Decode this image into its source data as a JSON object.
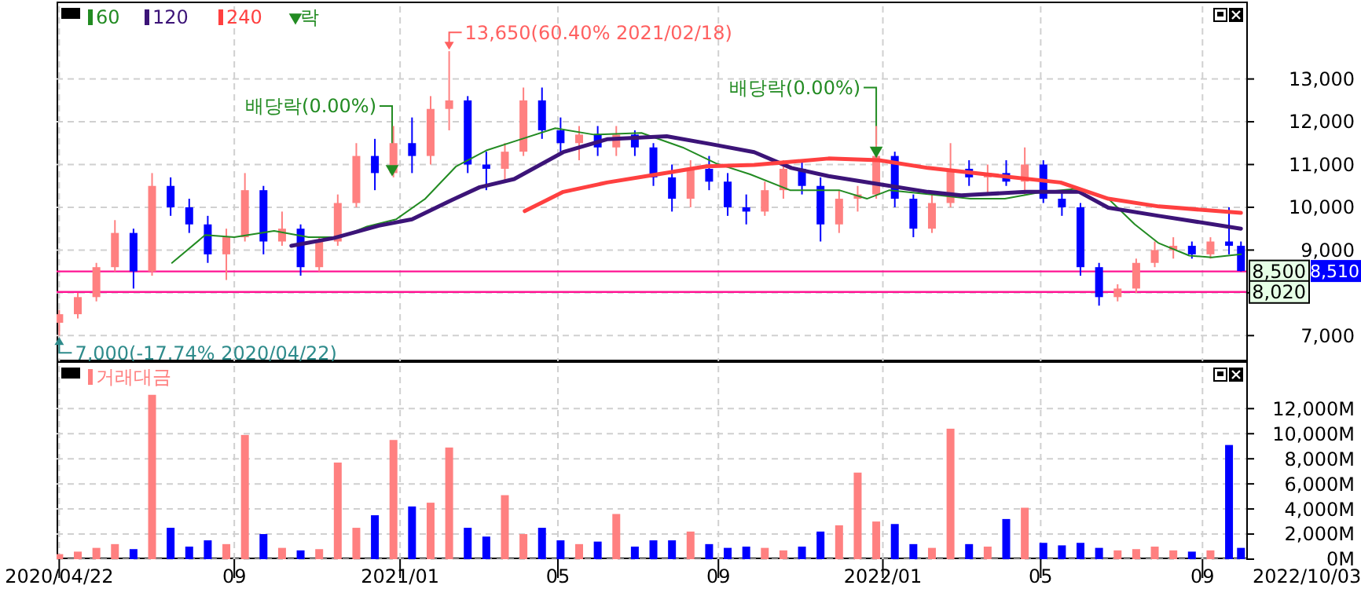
{
  "chart_data": [
    {
      "type": "candlestick",
      "x": [
        "2020-04-22",
        "2020-05-06",
        "2020-05-20",
        "2020-06-03",
        "2020-06-17",
        "2020-07-01",
        "2020-07-15",
        "2020-07-29",
        "2020-08-12",
        "2020-08-26",
        "2020-09-09",
        "2020-09-23",
        "2020-10-07",
        "2020-10-21",
        "2020-11-04",
        "2020-11-18",
        "2020-12-02",
        "2020-12-16",
        "2020-12-30",
        "2021-01-13",
        "2021-01-27",
        "2021-02-10",
        "2021-02-24",
        "2021-03-10",
        "2021-03-24",
        "2021-04-07",
        "2021-04-21",
        "2021-05-05",
        "2021-05-19",
        "2021-06-02",
        "2021-06-16",
        "2021-06-30",
        "2021-07-14",
        "2021-07-28",
        "2021-08-11",
        "2021-08-25",
        "2021-09-08",
        "2021-09-22",
        "2021-10-06",
        "2021-10-20",
        "2021-11-03",
        "2021-11-17",
        "2021-12-01",
        "2021-12-15",
        "2021-12-29",
        "2022-01-12",
        "2022-01-26",
        "2022-02-09",
        "2022-02-23",
        "2022-03-09",
        "2022-03-23",
        "2022-04-06",
        "2022-04-20",
        "2022-05-04",
        "2022-05-18",
        "2022-06-01",
        "2022-06-15",
        "2022-06-29",
        "2022-07-13",
        "2022-07-27",
        "2022-08-10",
        "2022-08-24",
        "2022-09-07",
        "2022-09-21",
        "2022-09-30"
      ],
      "ohlc": [
        [
          7300,
          7600,
          7000,
          7500
        ],
        [
          7500,
          8000,
          7400,
          7900
        ],
        [
          7900,
          8700,
          7800,
          8600
        ],
        [
          8600,
          9700,
          8500,
          9400
        ],
        [
          9400,
          9500,
          8100,
          8500
        ],
        [
          8500,
          10800,
          8400,
          10500
        ],
        [
          10500,
          10700,
          9800,
          10000
        ],
        [
          10000,
          10200,
          9400,
          9600
        ],
        [
          9600,
          9800,
          8700,
          8900
        ],
        [
          8900,
          9500,
          8300,
          9300
        ],
        [
          9300,
          10800,
          9200,
          10400
        ],
        [
          10400,
          10500,
          8900,
          9200
        ],
        [
          9200,
          9900,
          9100,
          9500
        ],
        [
          9500,
          9600,
          8400,
          8600
        ],
        [
          8600,
          9300,
          8500,
          9200
        ],
        [
          9200,
          10300,
          9100,
          10100
        ],
        [
          10100,
          11500,
          10000,
          11200
        ],
        [
          11200,
          11600,
          10400,
          10800
        ],
        [
          10800,
          11900,
          10700,
          11500
        ],
        [
          11500,
          12100,
          10800,
          11200
        ],
        [
          11200,
          12600,
          11000,
          12300
        ],
        [
          12300,
          13650,
          11800,
          12500
        ],
        [
          12500,
          12600,
          10800,
          11000
        ],
        [
          11000,
          11300,
          10400,
          10900
        ],
        [
          10900,
          11500,
          10600,
          11300
        ],
        [
          11300,
          12800,
          11200,
          12500
        ],
        [
          12500,
          12800,
          11600,
          11800
        ],
        [
          11800,
          12100,
          11300,
          11500
        ],
        [
          11500,
          11900,
          11100,
          11700
        ],
        [
          11700,
          11900,
          11200,
          11400
        ],
        [
          11400,
          11900,
          11200,
          11700
        ],
        [
          11700,
          11800,
          11200,
          11400
        ],
        [
          11400,
          11500,
          10500,
          10700
        ],
        [
          10700,
          11000,
          9900,
          10200
        ],
        [
          10200,
          11100,
          10000,
          10900
        ],
        [
          10900,
          11200,
          10400,
          10600
        ],
        [
          10600,
          10800,
          9800,
          10000
        ],
        [
          10000,
          10300,
          9600,
          9900
        ],
        [
          9900,
          10600,
          9800,
          10400
        ],
        [
          10400,
          11100,
          10200,
          10900
        ],
        [
          10900,
          11100,
          10300,
          10500
        ],
        [
          10500,
          10700,
          9200,
          9600
        ],
        [
          9600,
          10400,
          9400,
          10200
        ],
        [
          10200,
          10500,
          9900,
          10300
        ],
        [
          10300,
          11900,
          10200,
          11200
        ],
        [
          11200,
          11300,
          10000,
          10200
        ],
        [
          10200,
          10300,
          9300,
          9500
        ],
        [
          9500,
          10300,
          9400,
          10100
        ],
        [
          10100,
          11500,
          10000,
          10900
        ],
        [
          10900,
          11100,
          10500,
          10700
        ],
        [
          10700,
          11000,
          10300,
          10800
        ],
        [
          10800,
          11100,
          10500,
          10600
        ],
        [
          10600,
          11400,
          10300,
          11000
        ],
        [
          11000,
          11100,
          10100,
          10200
        ],
        [
          10200,
          10400,
          9800,
          10000
        ],
        [
          10000,
          10100,
          8400,
          8600
        ],
        [
          8600,
          8700,
          7700,
          7900
        ],
        [
          7900,
          8200,
          7800,
          8100
        ],
        [
          8100,
          8800,
          8000,
          8700
        ],
        [
          8700,
          9200,
          8600,
          9000
        ],
        [
          9000,
          9300,
          8800,
          9100
        ],
        [
          9100,
          9200,
          8800,
          8900
        ],
        [
          8900,
          9300,
          8800,
          9200
        ],
        [
          9200,
          10000,
          8900,
          9100
        ],
        [
          9100,
          9200,
          8500,
          8510
        ]
      ],
      "colors": [
        "#ff8080",
        "#ff8080",
        "#ff8080",
        "#ff8080",
        "#0000ff",
        "#ff8080",
        "#0000ff",
        "#0000ff",
        "#0000ff",
        "#ff8080",
        "#ff8080",
        "#0000ff",
        "#ff8080",
        "#0000ff",
        "#ff8080",
        "#ff8080",
        "#ff8080",
        "#0000ff",
        "#ff8080",
        "#0000ff",
        "#ff8080",
        "#ff8080",
        "#0000ff",
        "#0000ff",
        "#ff8080",
        "#ff8080",
        "#0000ff",
        "#0000ff",
        "#ff8080",
        "#0000ff",
        "#ff8080",
        "#0000ff",
        "#0000ff",
        "#0000ff",
        "#ff8080",
        "#0000ff",
        "#0000ff",
        "#0000ff",
        "#ff8080",
        "#ff8080",
        "#0000ff",
        "#0000ff",
        "#ff8080",
        "#ff8080",
        "#ff8080",
        "#0000ff",
        "#0000ff",
        "#ff8080",
        "#ff8080",
        "#0000ff",
        "#ff8080",
        "#0000ff",
        "#ff8080",
        "#0000ff",
        "#0000ff",
        "#0000ff",
        "#0000ff",
        "#ff8080",
        "#ff8080",
        "#ff8080",
        "#ff8080",
        "#0000ff",
        "#ff8080",
        "#0000ff",
        "#0000ff"
      ],
      "series": [
        {
          "name": "60",
          "type": "line",
          "color": "#228b22",
          "x": [
            "2020-07-16",
            "2020-08-10",
            "2020-09-01",
            "2020-10-01",
            "2020-10-27",
            "2020-11-20",
            "2020-12-10",
            "2021-01-01",
            "2021-01-23",
            "2021-02-15",
            "2021-03-10",
            "2021-04-05",
            "2021-05-01",
            "2021-05-30",
            "2021-07-05",
            "2021-08-05",
            "2021-08-30",
            "2021-09-25",
            "2021-10-25",
            "2021-12-01",
            "2021-12-22",
            "2022-01-08",
            "2022-02-15",
            "2022-03-10",
            "2022-04-05",
            "2022-05-01",
            "2022-05-28",
            "2022-06-22",
            "2022-07-12",
            "2022-07-30",
            "2022-08-22",
            "2022-09-08",
            "2022-09-30"
          ],
          "values": [
            8700,
            9350,
            9300,
            9450,
            9300,
            9300,
            9550,
            9720,
            10200,
            10950,
            11330,
            11590,
            11850,
            11700,
            11740,
            11400,
            11030,
            10770,
            10400,
            10400,
            10200,
            10400,
            10280,
            10200,
            10200,
            10350,
            10430,
            10200,
            9600,
            9160,
            8870,
            8830,
            8900
          ]
        },
        {
          "name": "120",
          "type": "line",
          "color": "#3c1478",
          "x": [
            "2020-10-14",
            "2020-11-15",
            "2020-12-19",
            "2021-01-13",
            "2021-02-12",
            "2021-03-05",
            "2021-03-31",
            "2021-05-07",
            "2021-06-09",
            "2021-07-24",
            "2021-08-26",
            "2021-09-28",
            "2021-10-26",
            "2021-11-23",
            "2021-12-31",
            "2022-02-06",
            "2022-03-03",
            "2022-04-21",
            "2022-05-31",
            "2022-06-22",
            "2022-07-30",
            "2022-09-30"
          ],
          "values": [
            9100,
            9280,
            9570,
            9720,
            10170,
            10470,
            10660,
            11290,
            11590,
            11660,
            11480,
            11290,
            10920,
            10730,
            10540,
            10360,
            10280,
            10360,
            10360,
            9990,
            9800,
            9500
          ]
        },
        {
          "name": "240",
          "type": "line",
          "color": "#ff4040",
          "x": [
            "2021-04-08",
            "2021-05-07",
            "2021-06-09",
            "2021-07-17",
            "2021-08-23",
            "2021-09-28",
            "2021-11-23",
            "2021-12-31",
            "2022-02-06",
            "2022-03-22",
            "2022-05-17",
            "2022-06-22",
            "2022-07-30",
            "2022-09-30"
          ],
          "values": [
            9910,
            10360,
            10580,
            10770,
            10960,
            10990,
            11140,
            11100,
            10920,
            10770,
            10580,
            10200,
            10020,
            9870
          ]
        },
        {
          "name": "락",
          "type": "scatter",
          "marker": "triangle",
          "color": "#228b22",
          "x": [
            "2020-12-29",
            "2021-12-29"
          ],
          "values": [
            10900,
            11330
          ]
        }
      ],
      "xlim": [
        "2020-04-20",
        "2022-10-04"
      ],
      "xticks": [
        {
          "value": "2020-04-22",
          "label": null
        },
        {
          "value": "2020-09-01",
          "label": null
        },
        {
          "value": "2021-01-04",
          "label": null
        },
        {
          "value": "2021-05-03",
          "label": null
        },
        {
          "value": "2021-09-01",
          "label": null
        },
        {
          "value": "2022-01-03",
          "label": null
        },
        {
          "value": "2022-05-02",
          "label": null
        },
        {
          "value": "2022-09-01",
          "label": null
        }
      ],
      "ylim": [
        6400,
        14700
      ],
      "yticks": [
        {
          "value": 7000,
          "label": "7,000"
        },
        {
          "value": 8000,
          "label": null
        },
        {
          "value": 9000,
          "label": "9,000"
        },
        {
          "value": 10000,
          "label": "10,000"
        },
        {
          "value": 11000,
          "label": "11,000"
        },
        {
          "value": 12000,
          "label": "12,000"
        },
        {
          "value": 13000,
          "label": "13,000"
        }
      ],
      "tick_labels": "y",
      "grid": true,
      "legend": "top left",
      "ref_lines": [
        {
          "axis": "y",
          "value": 8500,
          "label": "8,500",
          "color": "#ff1493"
        },
        {
          "axis": "y",
          "value": 8020,
          "label": "8,020",
          "color": "#ff1493"
        }
      ],
      "annotations": [
        {
          "text": "13,650(60.40% 2021/02/18)",
          "x": "2021-02-10",
          "y": 13650
        },
        {
          "text": "7,000(-17.74% 2020/04/22)",
          "x": "2020-04-22",
          "y": 7000
        },
        {
          "text": "배당락(0.00%)",
          "x": "2020-12-29",
          "y": 10900
        },
        {
          "text": "배당락(0.00%)",
          "x": "2021-12-29",
          "y": 11330
        },
        "8,510"
      ]
    },
    {
      "type": "bar",
      "x": [
        "2020-04-22",
        "2020-05-06",
        "2020-05-20",
        "2020-06-03",
        "2020-06-17",
        "2020-07-01",
        "2020-07-15",
        "2020-07-29",
        "2020-08-12",
        "2020-08-26",
        "2020-09-09",
        "2020-09-23",
        "2020-10-07",
        "2020-10-21",
        "2020-11-04",
        "2020-11-18",
        "2020-12-02",
        "2020-12-16",
        "2020-12-30",
        "2021-01-13",
        "2021-01-27",
        "2021-02-10",
        "2021-02-24",
        "2021-03-10",
        "2021-03-24",
        "2021-04-07",
        "2021-04-21",
        "2021-05-05",
        "2021-05-19",
        "2021-06-02",
        "2021-06-16",
        "2021-06-30",
        "2021-07-14",
        "2021-07-28",
        "2021-08-11",
        "2021-08-25",
        "2021-09-08",
        "2021-09-22",
        "2021-10-06",
        "2021-10-20",
        "2021-11-03",
        "2021-11-17",
        "2021-12-01",
        "2021-12-15",
        "2021-12-29",
        "2022-01-12",
        "2022-01-26",
        "2022-02-09",
        "2022-02-23",
        "2022-03-09",
        "2022-03-23",
        "2022-04-06",
        "2022-04-20",
        "2022-05-04",
        "2022-05-18",
        "2022-06-01",
        "2022-06-15",
        "2022-06-29",
        "2022-07-13",
        "2022-07-27",
        "2022-08-10",
        "2022-08-24",
        "2022-09-07",
        "2022-09-21",
        "2022-09-30"
      ],
      "series": [
        {
          "name": "거래대금",
          "color": "#ff8080",
          "colors": [
            "#ff8080",
            "#ff8080",
            "#ff8080",
            "#ff8080",
            "#0000ff",
            "#ff8080",
            "#0000ff",
            "#0000ff",
            "#0000ff",
            "#ff8080",
            "#ff8080",
            "#0000ff",
            "#ff8080",
            "#0000ff",
            "#ff8080",
            "#ff8080",
            "#ff8080",
            "#0000ff",
            "#ff8080",
            "#0000ff",
            "#ff8080",
            "#ff8080",
            "#0000ff",
            "#0000ff",
            "#ff8080",
            "#ff8080",
            "#0000ff",
            "#0000ff",
            "#ff8080",
            "#0000ff",
            "#ff8080",
            "#0000ff",
            "#0000ff",
            "#0000ff",
            "#ff8080",
            "#0000ff",
            "#0000ff",
            "#0000ff",
            "#ff8080",
            "#ff8080",
            "#0000ff",
            "#0000ff",
            "#ff8080",
            "#ff8080",
            "#ff8080",
            "#0000ff",
            "#0000ff",
            "#ff8080",
            "#ff8080",
            "#0000ff",
            "#ff8080",
            "#0000ff",
            "#ff8080",
            "#0000ff",
            "#0000ff",
            "#0000ff",
            "#0000ff",
            "#ff8080",
            "#ff8080",
            "#ff8080",
            "#ff8080",
            "#0000ff",
            "#ff8080",
            "#0000ff",
            "#0000ff"
          ],
          "values": [
            400,
            600,
            900,
            1200,
            800,
            13100,
            2500,
            1000,
            1500,
            1200,
            9900,
            2000,
            900,
            700,
            800,
            7700,
            2500,
            3500,
            9500,
            4200,
            4500,
            8900,
            2500,
            1800,
            5100,
            2000,
            2500,
            1500,
            1200,
            1400,
            3600,
            1000,
            1500,
            1500,
            2200,
            1200,
            900,
            1000,
            900,
            700,
            1000,
            2200,
            2700,
            6900,
            3000,
            2800,
            1200,
            900,
            10400,
            1200,
            1000,
            3200,
            4100,
            1300,
            1100,
            1300,
            900,
            700,
            800,
            1000,
            700,
            600,
            700,
            9100,
            900
          ]
        }
      ],
      "xlim": [
        "2020-04-20",
        "2022-10-04"
      ],
      "xticks": [
        {
          "value": "2020-04-22",
          "label": "2020/04/22"
        },
        {
          "value": "2020-09-01",
          "label": "09"
        },
        {
          "value": "2021-01-04",
          "label": "2021/01"
        },
        {
          "value": "2021-05-03",
          "label": "05"
        },
        {
          "value": "2021-09-01",
          "label": "09"
        },
        {
          "value": "2022-01-03",
          "label": "2022/01"
        },
        {
          "value": "2022-05-02",
          "label": "05"
        },
        {
          "value": "2022-09-01",
          "label": "09"
        }
      ],
      "ylim": [
        0,
        15400
      ],
      "annotations": [
        "2022/10/03"
      ],
      "yticks": [
        {
          "value": 0,
          "label": "0M"
        },
        {
          "value": 2000,
          "label": "2,000M"
        },
        {
          "value": 4000,
          "label": "4,000M"
        },
        {
          "value": 6000,
          "label": "6,000M"
        },
        {
          "value": 8000,
          "label": "8,000M"
        },
        {
          "value": 10000,
          "label": "10,000M"
        },
        {
          "value": 12000,
          "label": "12,000M"
        }
      ],
      "grid": true,
      "legend": "top left"
    }
  ]
}
